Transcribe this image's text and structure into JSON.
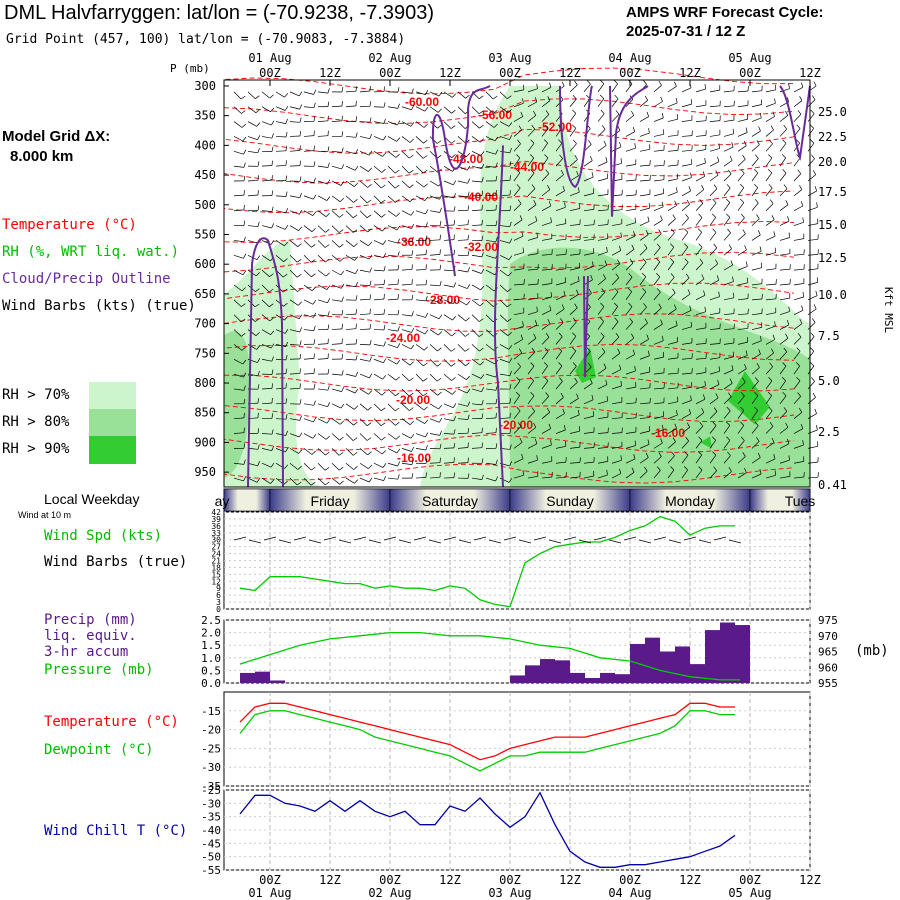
{
  "header": {
    "title": "DML Halvfarryggen:  lat/lon = (-70.9238, -7.3903)",
    "subtitle": "Grid Point (457, 100) lat/lon = (-70.9083, -7.3884)",
    "cycle_label": "AMPS WRF Forecast Cycle:",
    "cycle_value": "2025-07-31 / 12  Z"
  },
  "time_axis": {
    "ticks": [
      "00Z",
      "12Z",
      "00Z",
      "12Z",
      "00Z",
      "12Z",
      "00Z",
      "12Z",
      "00Z",
      "12Z"
    ],
    "dates": [
      "01 Aug",
      "02 Aug",
      "03 Aug",
      "04 Aug",
      "05 Aug"
    ],
    "date_tick_index": [
      0,
      2,
      4,
      6,
      8
    ]
  },
  "left_labels": {
    "model_grid_title": "Model Grid ΔX:",
    "model_grid_value": "8.000 km",
    "temperature": "Temperature (°C)",
    "rh": "RH (%, WRT liq. wat.)",
    "cloud": "Cloud/Precip Outline",
    "wind": "Wind Barbs (kts) (true)",
    "p_axis_label": "P (mb)"
  },
  "rh_legend": [
    {
      "label": "RH > 70%",
      "color": "#ccf5cc"
    },
    {
      "label": "RH > 80%",
      "color": "#99e099"
    },
    {
      "label": "RH > 90%",
      "color": "#33cc33"
    }
  ],
  "colors": {
    "temperature": "#ff0000",
    "dewpoint": "#00cc00",
    "windchill": "#0000aa",
    "precip": "#5a1a8a",
    "pressure": "#00cc00",
    "cloud": "#6a2a9a",
    "weekday_dark": "#3a3a8a",
    "weekday_light": "#f0f0e0"
  },
  "chart_data": [
    {
      "type": "heatmap",
      "name": "pressure-time cross section",
      "y_axis": {
        "label": "P (mb)",
        "ticks": [
          300,
          350,
          400,
          450,
          500,
          550,
          600,
          650,
          700,
          750,
          800,
          850,
          900,
          950
        ]
      },
      "y2_axis": {
        "label": "Kft MSL",
        "ticks": [
          "25.0",
          "22.5",
          "20.0",
          "17.5",
          "15.0",
          "12.5",
          "10.0",
          "7.5",
          "5.0",
          "2.5",
          "0.41"
        ]
      },
      "temperature_contour_labels": [
        "-60.00",
        "-56.00",
        "-52.00",
        "-48.00",
        "-44.00",
        "-40.00",
        "-36.00",
        "-32.00",
        "-28.00",
        "-24.00",
        "-20.00",
        "-20.00",
        "-16.00",
        "-16.00"
      ]
    },
    {
      "type": "table",
      "name": "weekday strip",
      "title": "Local Weekday",
      "subtitle": "Wind at 10 m",
      "days": [
        "Thursday",
        "Friday",
        "Saturday",
        "Sunday",
        "Monday",
        "Tuesday"
      ]
    },
    {
      "type": "line",
      "name": "wind speed",
      "ylabel": "Wind Spd (kts)",
      "ylabel2": "Wind Barbs (true)",
      "ylim": [
        0,
        42
      ],
      "yticks": [
        0,
        3,
        6,
        9,
        12,
        15,
        18,
        21,
        24,
        27,
        30,
        33,
        36,
        39,
        42
      ],
      "x_hours": [
        -6,
        -3,
        0,
        3,
        6,
        9,
        12,
        15,
        18,
        21,
        24,
        27,
        30,
        33,
        36,
        39,
        42,
        45,
        48,
        51,
        54,
        57,
        60,
        63,
        66,
        69,
        72,
        75,
        78,
        81,
        84,
        87,
        90,
        93
      ],
      "values": [
        9,
        8,
        14,
        14,
        14,
        13,
        12,
        11,
        11,
        9,
        10,
        9,
        9,
        8,
        10,
        9,
        4,
        2,
        1,
        20,
        24,
        27,
        28,
        29,
        29,
        31,
        34,
        36,
        40,
        38,
        32,
        35,
        36,
        36
      ]
    },
    {
      "type": "bar",
      "name": "precipitation and pressure",
      "ylabel": "Precip (mm)",
      "ylabel_lines": [
        "liq. equiv.",
        "3-hr accum"
      ],
      "y2label": "Pressure (mb)",
      "y2unit": "(mb)",
      "ylim": [
        0,
        2.5
      ],
      "yticks": [
        "0.0",
        "0.5",
        "1.0",
        "1.5",
        "2.0",
        "2.5"
      ],
      "y2lim": [
        955,
        975
      ],
      "y2ticks": [
        955,
        960,
        965,
        970,
        975
      ],
      "x_hours": [
        -4.5,
        -1.5,
        1.5,
        4.5,
        7.5,
        10.5,
        13.5,
        16.5,
        19.5,
        22.5,
        25.5,
        28.5,
        31.5,
        34.5,
        37.5,
        40.5,
        43.5,
        46.5,
        49.5,
        52.5,
        55.5,
        58.5,
        61.5,
        64.5,
        67.5,
        70.5,
        73.5,
        76.5,
        79.5,
        82.5,
        85.5,
        88.5,
        91.5,
        94.5
      ],
      "precip": [
        0.4,
        0.45,
        0.1,
        0,
        0,
        0,
        0,
        0,
        0,
        0,
        0,
        0,
        0,
        0,
        0,
        0,
        0,
        0,
        0.3,
        0.7,
        0.95,
        0.9,
        0.4,
        0.2,
        0.4,
        0.35,
        1.55,
        1.8,
        1.25,
        1.45,
        0.75,
        2.1,
        2.4,
        2.3
      ],
      "pressure_x_hours": [
        -6,
        0,
        6,
        12,
        18,
        24,
        30,
        36,
        42,
        48,
        54,
        60,
        66,
        72,
        78,
        84,
        90,
        94
      ],
      "pressure": [
        961,
        964,
        967,
        969,
        970,
        971,
        971,
        970,
        970,
        969,
        967,
        966,
        963,
        962,
        959,
        957,
        956,
        956
      ]
    },
    {
      "type": "line",
      "name": "temperature and dewpoint",
      "ylim": [
        -35,
        -10
      ],
      "yticks": [
        -15,
        -20,
        -25,
        -30,
        -35
      ],
      "x_hours": [
        -6,
        -3,
        0,
        3,
        6,
        9,
        12,
        15,
        18,
        21,
        24,
        27,
        30,
        33,
        36,
        39,
        42,
        45,
        48,
        51,
        54,
        57,
        60,
        63,
        66,
        69,
        72,
        75,
        78,
        81,
        84,
        87,
        90,
        93
      ],
      "series": [
        {
          "name": "Temperature (°C)",
          "values": [
            -18,
            -14,
            -13,
            -13,
            -14,
            -15,
            -16,
            -17,
            -18,
            -19,
            -20,
            -21,
            -22,
            -23,
            -24,
            -26,
            -28,
            -27,
            -25,
            -24,
            -23,
            -22,
            -22,
            -22,
            -21,
            -20,
            -19,
            -18,
            -17,
            -16,
            -13,
            -13,
            -14,
            -14
          ]
        },
        {
          "name": "Dewpoint (°C)",
          "values": [
            -21,
            -16,
            -15,
            -15,
            -16,
            -17,
            -18,
            -19,
            -20,
            -22,
            -23,
            -24,
            -25,
            -26,
            -27,
            -29,
            -31,
            -29,
            -27,
            -27,
            -26,
            -26,
            -26,
            -26,
            -25,
            -24,
            -23,
            -22,
            -21,
            -19,
            -15,
            -15,
            -16,
            -16
          ]
        }
      ]
    },
    {
      "type": "line",
      "name": "wind chill",
      "ylabel": "Wind Chill T (°C)",
      "ylim": [
        -55,
        -25
      ],
      "yticks": [
        -25,
        -30,
        -35,
        -40,
        -45,
        -50,
        -55
      ],
      "x_hours": [
        -6,
        -3,
        0,
        3,
        6,
        9,
        12,
        15,
        18,
        21,
        24,
        27,
        30,
        33,
        36,
        39,
        42,
        45,
        48,
        51,
        54,
        57,
        60,
        63,
        66,
        69,
        72,
        75,
        78,
        81,
        84,
        87,
        90,
        93
      ],
      "values": [
        -34,
        -27,
        -27,
        -30,
        -31,
        -33,
        -29,
        -33,
        -29,
        -33,
        -35,
        -33,
        -38,
        -38,
        -31,
        -33,
        -28,
        -34,
        -39,
        -35,
        -26,
        -38,
        -48,
        -52,
        -54,
        -54,
        -53,
        -53,
        -52,
        -51,
        -50,
        -48,
        -46,
        -42
      ]
    }
  ]
}
